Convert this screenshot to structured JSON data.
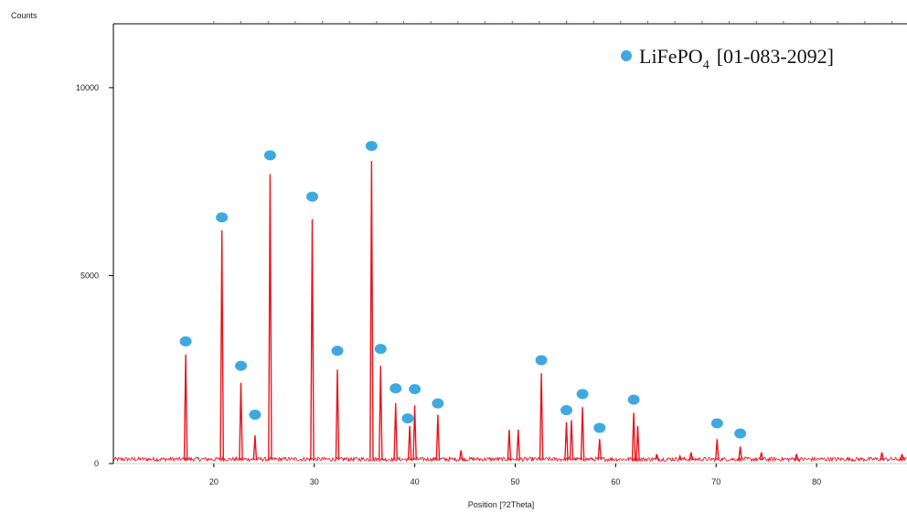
{
  "chart_data": {
    "type": "line",
    "ylabel": "Counts",
    "xlabel": "Position [?2Theta]",
    "xlim": [
      10,
      89
    ],
    "ylim": [
      0,
      11700
    ],
    "xticks": [
      20,
      30,
      40,
      50,
      60,
      70,
      80
    ],
    "yticks": [
      0,
      5000,
      10000
    ],
    "legend": {
      "label_main": "LiFePO",
      "label_sub": "4",
      "label_ref": "[01-083-2092]",
      "position": "top-right",
      "marker_color": "#3fa9df"
    },
    "colors": {
      "pattern": "#e8141c",
      "marker": "#3fa9df",
      "axis": "#000000"
    },
    "series": [
      {
        "peaks": [
          {
            "x": 17.2,
            "y": 2900
          },
          {
            "x": 20.8,
            "y": 6200
          },
          {
            "x": 22.7,
            "y": 2150
          },
          {
            "x": 24.1,
            "y": 750
          },
          {
            "x": 25.6,
            "y": 7700
          },
          {
            "x": 29.8,
            "y": 6500
          },
          {
            "x": 32.3,
            "y": 2500
          },
          {
            "x": 35.7,
            "y": 8050
          },
          {
            "x": 36.6,
            "y": 2600
          },
          {
            "x": 38.1,
            "y": 1600
          },
          {
            "x": 39.5,
            "y": 1000
          },
          {
            "x": 40.0,
            "y": 1550
          },
          {
            "x": 42.3,
            "y": 1300
          },
          {
            "x": 44.6,
            "y": 350
          },
          {
            "x": 49.4,
            "y": 900
          },
          {
            "x": 50.3,
            "y": 900
          },
          {
            "x": 52.6,
            "y": 2400
          },
          {
            "x": 55.1,
            "y": 1100
          },
          {
            "x": 55.6,
            "y": 1150
          },
          {
            "x": 56.7,
            "y": 1500
          },
          {
            "x": 58.4,
            "y": 650
          },
          {
            "x": 61.8,
            "y": 1350
          },
          {
            "x": 62.2,
            "y": 1000
          },
          {
            "x": 64.1,
            "y": 250
          },
          {
            "x": 66.4,
            "y": 200
          },
          {
            "x": 67.5,
            "y": 300
          },
          {
            "x": 70.1,
            "y": 650
          },
          {
            "x": 72.4,
            "y": 450
          },
          {
            "x": 74.5,
            "y": 300
          },
          {
            "x": 78.0,
            "y": 250
          },
          {
            "x": 86.5,
            "y": 300
          },
          {
            "x": 88.5,
            "y": 250
          }
        ]
      }
    ],
    "markers": [
      {
        "x": 17.2,
        "y": 3250
      },
      {
        "x": 20.8,
        "y": 6550
      },
      {
        "x": 22.7,
        "y": 2600
      },
      {
        "x": 24.1,
        "y": 1300
      },
      {
        "x": 25.6,
        "y": 8200
      },
      {
        "x": 29.8,
        "y": 7100
      },
      {
        "x": 32.3,
        "y": 3000
      },
      {
        "x": 35.7,
        "y": 8450
      },
      {
        "x": 36.6,
        "y": 3050
      },
      {
        "x": 38.1,
        "y": 2000
      },
      {
        "x": 39.3,
        "y": 1200
      },
      {
        "x": 40.0,
        "y": 1980
      },
      {
        "x": 42.3,
        "y": 1600
      },
      {
        "x": 52.6,
        "y": 2750
      },
      {
        "x": 55.1,
        "y": 1420
      },
      {
        "x": 56.7,
        "y": 1850
      },
      {
        "x": 58.4,
        "y": 950
      },
      {
        "x": 61.8,
        "y": 1700
      },
      {
        "x": 70.1,
        "y": 1070
      },
      {
        "x": 72.4,
        "y": 800
      }
    ]
  }
}
